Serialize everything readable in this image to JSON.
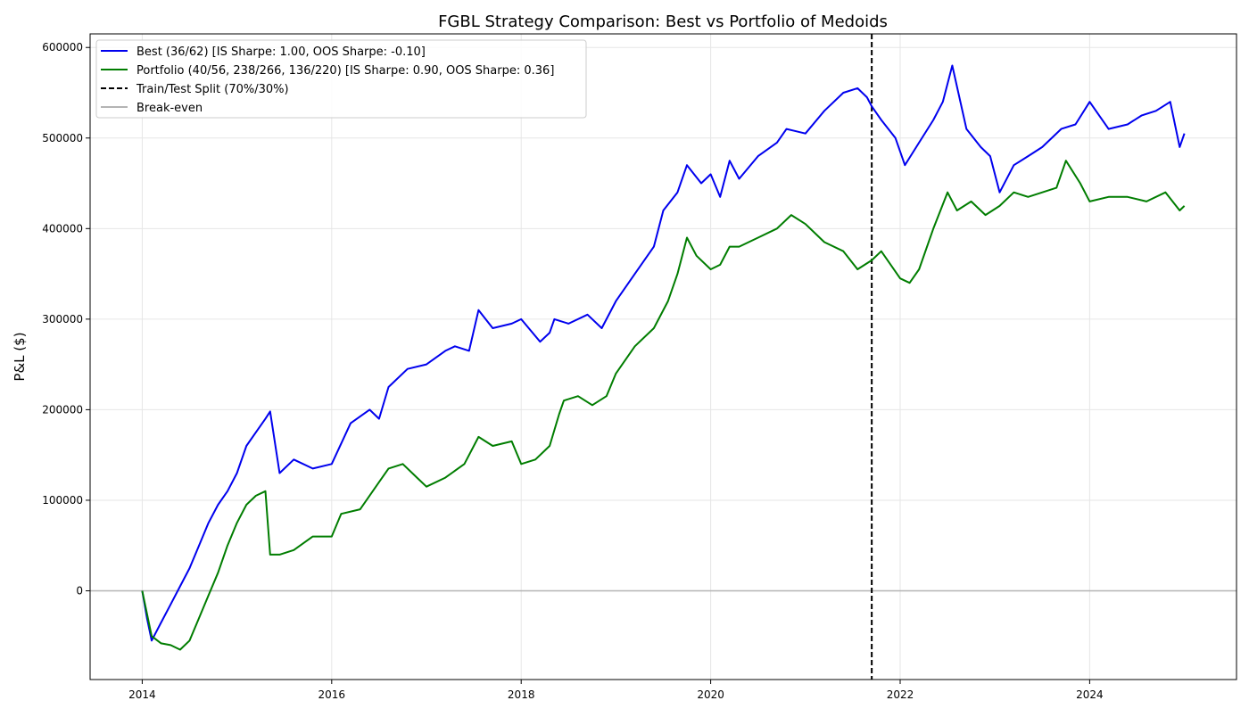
{
  "chart_data": {
    "type": "line",
    "title": "FGBL Strategy Comparison: Best vs Portfolio of Medoids",
    "xlabel": "",
    "ylabel": "P&L ($)",
    "xlim": [
      2013.45,
      2025.55
    ],
    "ylim": [
      -98000,
      615000
    ],
    "grid": true,
    "legend_position": "top-left",
    "x_ticks": [
      2014,
      2016,
      2018,
      2020,
      2022,
      2024
    ],
    "x_tick_labels": [
      "2014",
      "2016",
      "2018",
      "2020",
      "2022",
      "2024"
    ],
    "y_ticks": [
      0,
      100000,
      200000,
      300000,
      400000,
      500000,
      600000
    ],
    "y_tick_labels": [
      "0",
      "100000",
      "200000",
      "300000",
      "400000",
      "500000",
      "600000"
    ],
    "split_x": 2021.7,
    "split_label": "Train/Test Split (70%/30%)",
    "breakeven_value": 0,
    "breakeven_label": "Break-even",
    "colors": {
      "best": "#0000ee",
      "portfolio": "#007d00",
      "split": "#000000",
      "breakeven": "#b4b4b4",
      "grid": "#e6e6e6"
    },
    "series": [
      {
        "name": "Best (36/62) [IS Sharpe: 1.00, OOS Sharpe: -0.10]",
        "key": "best",
        "x": [
          2014.0,
          2014.05,
          2014.1,
          2014.15,
          2014.2,
          2014.3,
          2014.4,
          2014.5,
          2014.6,
          2014.7,
          2014.8,
          2014.9,
          2015.0,
          2015.1,
          2015.2,
          2015.3,
          2015.35,
          2015.45,
          2015.6,
          2015.8,
          2016.0,
          2016.2,
          2016.4,
          2016.5,
          2016.6,
          2016.8,
          2017.0,
          2017.2,
          2017.3,
          2017.45,
          2017.55,
          2017.7,
          2017.9,
          2018.0,
          2018.2,
          2018.3,
          2018.35,
          2018.5,
          2018.7,
          2018.85,
          2019.0,
          2019.2,
          2019.4,
          2019.5,
          2019.65,
          2019.75,
          2019.9,
          2020.0,
          2020.1,
          2020.2,
          2020.3,
          2020.5,
          2020.7,
          2020.8,
          2021.0,
          2021.2,
          2021.4,
          2021.55,
          2021.65,
          2021.7,
          2021.8,
          2021.95,
          2022.05,
          2022.2,
          2022.35,
          2022.45,
          2022.55,
          2022.7,
          2022.85,
          2022.95,
          2023.05,
          2023.2,
          2023.35,
          2023.5,
          2023.7,
          2023.85,
          2024.0,
          2024.2,
          2024.4,
          2024.55,
          2024.7,
          2024.85,
          2024.95,
          2025.0
        ],
        "y": [
          0,
          -30000,
          -55000,
          -45000,
          -35000,
          -15000,
          5000,
          25000,
          50000,
          75000,
          95000,
          110000,
          130000,
          160000,
          175000,
          190000,
          198000,
          130000,
          145000,
          135000,
          140000,
          185000,
          200000,
          190000,
          225000,
          245000,
          250000,
          265000,
          270000,
          265000,
          310000,
          290000,
          295000,
          300000,
          275000,
          285000,
          300000,
          295000,
          305000,
          290000,
          320000,
          350000,
          380000,
          420000,
          440000,
          470000,
          450000,
          460000,
          435000,
          475000,
          455000,
          480000,
          495000,
          510000,
          505000,
          530000,
          550000,
          555000,
          545000,
          535000,
          520000,
          500000,
          470000,
          495000,
          520000,
          540000,
          580000,
          510000,
          490000,
          480000,
          440000,
          470000,
          480000,
          490000,
          510000,
          515000,
          540000,
          510000,
          515000,
          525000,
          530000,
          540000,
          490000,
          505000
        ]
      },
      {
        "name": "Portfolio (40/56, 238/266, 136/220) [IS Sharpe: 0.90, OOS Sharpe: 0.36]",
        "key": "portfolio",
        "x": [
          2014.0,
          2014.05,
          2014.1,
          2014.2,
          2014.3,
          2014.4,
          2014.5,
          2014.6,
          2014.7,
          2014.8,
          2014.9,
          2015.0,
          2015.1,
          2015.2,
          2015.3,
          2015.35,
          2015.45,
          2015.6,
          2015.8,
          2016.0,
          2016.1,
          2016.3,
          2016.5,
          2016.6,
          2016.75,
          2016.9,
          2017.0,
          2017.2,
          2017.4,
          2017.55,
          2017.7,
          2017.9,
          2018.0,
          2018.15,
          2018.3,
          2018.4,
          2018.45,
          2018.6,
          2018.75,
          2018.9,
          2019.0,
          2019.2,
          2019.4,
          2019.55,
          2019.65,
          2019.75,
          2019.85,
          2020.0,
          2020.1,
          2020.2,
          2020.3,
          2020.5,
          2020.7,
          2020.85,
          2021.0,
          2021.2,
          2021.4,
          2021.55,
          2021.7,
          2021.8,
          2021.9,
          2022.0,
          2022.1,
          2022.2,
          2022.35,
          2022.5,
          2022.6,
          2022.75,
          2022.9,
          2023.05,
          2023.2,
          2023.35,
          2023.5,
          2023.65,
          2023.75,
          2023.9,
          2024.0,
          2024.2,
          2024.4,
          2024.6,
          2024.8,
          2024.95,
          2025.0
        ],
        "y": [
          0,
          -25000,
          -50000,
          -58000,
          -60000,
          -65000,
          -55000,
          -30000,
          -5000,
          20000,
          50000,
          75000,
          95000,
          105000,
          110000,
          40000,
          40000,
          45000,
          60000,
          60000,
          85000,
          90000,
          120000,
          135000,
          140000,
          125000,
          115000,
          125000,
          140000,
          170000,
          160000,
          165000,
          140000,
          145000,
          160000,
          195000,
          210000,
          215000,
          205000,
          215000,
          240000,
          270000,
          290000,
          320000,
          350000,
          390000,
          370000,
          355000,
          360000,
          380000,
          380000,
          390000,
          400000,
          415000,
          405000,
          385000,
          375000,
          355000,
          365000,
          375000,
          360000,
          345000,
          340000,
          355000,
          400000,
          440000,
          420000,
          430000,
          415000,
          425000,
          440000,
          435000,
          440000,
          445000,
          475000,
          450000,
          430000,
          435000,
          435000,
          430000,
          440000,
          420000,
          425000
        ]
      }
    ]
  }
}
